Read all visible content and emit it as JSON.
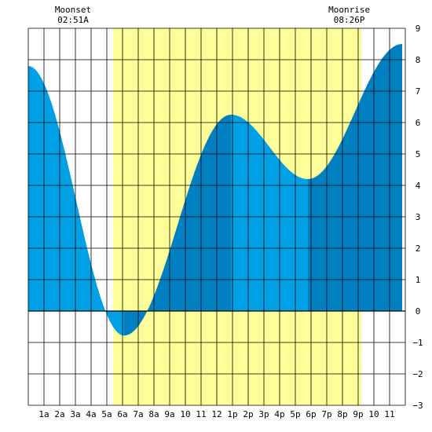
{
  "chart_data": {
    "type": "area",
    "title": "",
    "xlabel": "",
    "ylabel": "",
    "xlim": [
      0,
      24
    ],
    "ylim": [
      -3,
      9
    ],
    "grid": true,
    "x_tick_labels": [
      "1a",
      "2a",
      "3a",
      "4a",
      "5a",
      "6a",
      "7a",
      "8a",
      "9a",
      "10",
      "11",
      "12",
      "1p",
      "2p",
      "3p",
      "4p",
      "5p",
      "6p",
      "7p",
      "8p",
      "9p",
      "10",
      "11"
    ],
    "y_ticks": [
      -3,
      -2,
      -1,
      0,
      1,
      2,
      3,
      4,
      5,
      6,
      7,
      8,
      9
    ],
    "y_tick_labels": [
      "−3",
      "−2",
      "−1",
      "0",
      "1",
      "2",
      "3",
      "4",
      "5",
      "6",
      "7",
      "8",
      "9"
    ],
    "daylight": {
      "start_hour": 5.4,
      "end_hour": 21.2
    },
    "annotations": [
      {
        "hour": 2.85,
        "label": "Moonset",
        "time": "02:51A"
      },
      {
        "hour": 20.43,
        "label": "Moonrise",
        "time": "08:26P"
      }
    ],
    "colors": {
      "daylight": "#ffff99",
      "tide_rising": "#0080c0",
      "tide_falling": "#00a0e6",
      "grid": "#000000",
      "background": "#ffffff"
    },
    "extrema": [
      {
        "hour": 0.0,
        "height": 7.8,
        "kind": "start"
      },
      {
        "hour": 6.1,
        "height": -0.78,
        "kind": "low"
      },
      {
        "hour": 12.9,
        "height": 6.25,
        "kind": "high"
      },
      {
        "hour": 17.8,
        "height": 4.2,
        "kind": "low"
      },
      {
        "hour": 23.8,
        "height": 8.5,
        "kind": "high"
      }
    ]
  }
}
